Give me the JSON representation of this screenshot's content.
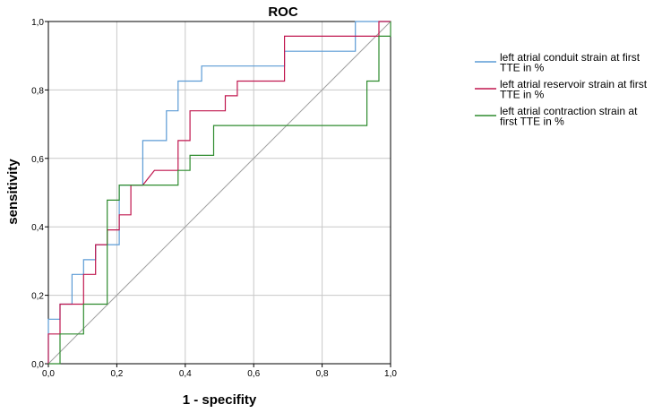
{
  "chart_data": {
    "type": "line",
    "title": "ROC",
    "xlabel": "1 - specifity",
    "ylabel": "sensitivity",
    "xlim": [
      0,
      1
    ],
    "ylim": [
      0,
      1
    ],
    "x_ticks": [
      "0,0",
      "0,2",
      "0,4",
      "0,6",
      "0,8",
      "1,0"
    ],
    "y_ticks": [
      "0,0",
      "0,2",
      "0,4",
      "0,6",
      "0,8",
      "1,0"
    ],
    "grid": true,
    "legend_position": "right",
    "reference_line": {
      "from": [
        0,
        0
      ],
      "to": [
        1,
        1
      ],
      "color": "#a0a0a0"
    },
    "series": [
      {
        "name_lines": [
          "left atrial conduit strain at first",
          "TTE in %"
        ],
        "color": "#5b9bd5",
        "points": [
          [
            0,
            0
          ],
          [
            0,
            0.13
          ],
          [
            0.034,
            0.13
          ],
          [
            0.034,
            0.174
          ],
          [
            0.069,
            0.174
          ],
          [
            0.069,
            0.261
          ],
          [
            0.103,
            0.261
          ],
          [
            0.103,
            0.304
          ],
          [
            0.138,
            0.304
          ],
          [
            0.138,
            0.348
          ],
          [
            0.207,
            0.348
          ],
          [
            0.207,
            0.522
          ],
          [
            0.276,
            0.522
          ],
          [
            0.276,
            0.652
          ],
          [
            0.345,
            0.652
          ],
          [
            0.345,
            0.739
          ],
          [
            0.379,
            0.739
          ],
          [
            0.379,
            0.826
          ],
          [
            0.448,
            0.826
          ],
          [
            0.448,
            0.87
          ],
          [
            0.69,
            0.87
          ],
          [
            0.69,
            0.913
          ],
          [
            0.897,
            0.913
          ],
          [
            0.897,
            1.0
          ],
          [
            1.0,
            1.0
          ]
        ]
      },
      {
        "name_lines": [
          "left atrial reservoir strain at first",
          "TTE in %"
        ],
        "color": "#c0174f",
        "points": [
          [
            0,
            0
          ],
          [
            0,
            0.087
          ],
          [
            0.034,
            0.087
          ],
          [
            0.034,
            0.174
          ],
          [
            0.103,
            0.174
          ],
          [
            0.103,
            0.261
          ],
          [
            0.138,
            0.261
          ],
          [
            0.138,
            0.348
          ],
          [
            0.172,
            0.348
          ],
          [
            0.172,
            0.391
          ],
          [
            0.207,
            0.391
          ],
          [
            0.207,
            0.435
          ],
          [
            0.241,
            0.435
          ],
          [
            0.241,
            0.522
          ],
          [
            0.276,
            0.522
          ],
          [
            0.31,
            0.565
          ],
          [
            0.379,
            0.565
          ],
          [
            0.379,
            0.652
          ],
          [
            0.414,
            0.652
          ],
          [
            0.414,
            0.739
          ],
          [
            0.517,
            0.739
          ],
          [
            0.517,
            0.783
          ],
          [
            0.552,
            0.783
          ],
          [
            0.552,
            0.826
          ],
          [
            0.69,
            0.826
          ],
          [
            0.69,
            0.957
          ],
          [
            0.966,
            0.957
          ],
          [
            0.966,
            1.0
          ],
          [
            1.0,
            1.0
          ]
        ]
      },
      {
        "name_lines": [
          "left atrial contraction strain at",
          "first TTE in %"
        ],
        "color": "#2e8b2e",
        "points": [
          [
            0,
            0
          ],
          [
            0.034,
            0
          ],
          [
            0.034,
            0.087
          ],
          [
            0.103,
            0.087
          ],
          [
            0.103,
            0.174
          ],
          [
            0.172,
            0.174
          ],
          [
            0.172,
            0.478
          ],
          [
            0.207,
            0.478
          ],
          [
            0.207,
            0.522
          ],
          [
            0.379,
            0.522
          ],
          [
            0.379,
            0.565
          ],
          [
            0.414,
            0.565
          ],
          [
            0.414,
            0.609
          ],
          [
            0.483,
            0.609
          ],
          [
            0.483,
            0.696
          ],
          [
            0.931,
            0.696
          ],
          [
            0.931,
            0.826
          ],
          [
            0.966,
            0.826
          ],
          [
            0.966,
            0.957
          ],
          [
            1.0,
            0.957
          ],
          [
            1.0,
            1.0
          ]
        ]
      }
    ]
  }
}
